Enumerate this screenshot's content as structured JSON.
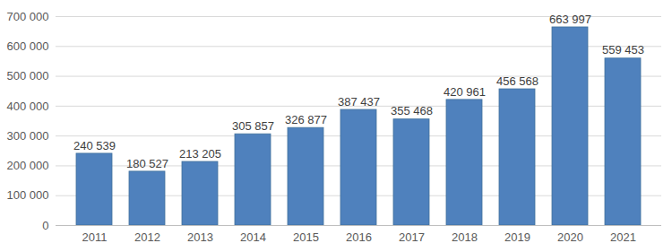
{
  "chart_data": {
    "type": "bar",
    "categories": [
      "2011",
      "2012",
      "2013",
      "2014",
      "2015",
      "2016",
      "2017",
      "2018",
      "2019",
      "2020",
      "2021"
    ],
    "values": [
      240539,
      180527,
      213205,
      305857,
      326877,
      387437,
      355468,
      420961,
      456568,
      663997,
      559453
    ],
    "value_labels": [
      "240 539",
      "180 527",
      "213 205",
      "305 857",
      "326 877",
      "387 437",
      "355 468",
      "420 961",
      "456 568",
      "663 997",
      "559 453"
    ],
    "data_labels": true,
    "color": "#4f81bd",
    "ylim": [
      0,
      700000
    ],
    "yticks": [
      0,
      {
        "value": 100000,
        "label": "100 000"
      },
      {
        "value": 200000,
        "label": "200 000"
      },
      {
        "value": 300000,
        "label": "300 000"
      },
      {
        "value": 400000,
        "label": "400 000"
      },
      {
        "value": 500000,
        "label": "500 000"
      },
      {
        "value": 600000,
        "label": "600 000"
      },
      {
        "value": 700000,
        "label": "700 000"
      }
    ],
    "grid": true
  }
}
